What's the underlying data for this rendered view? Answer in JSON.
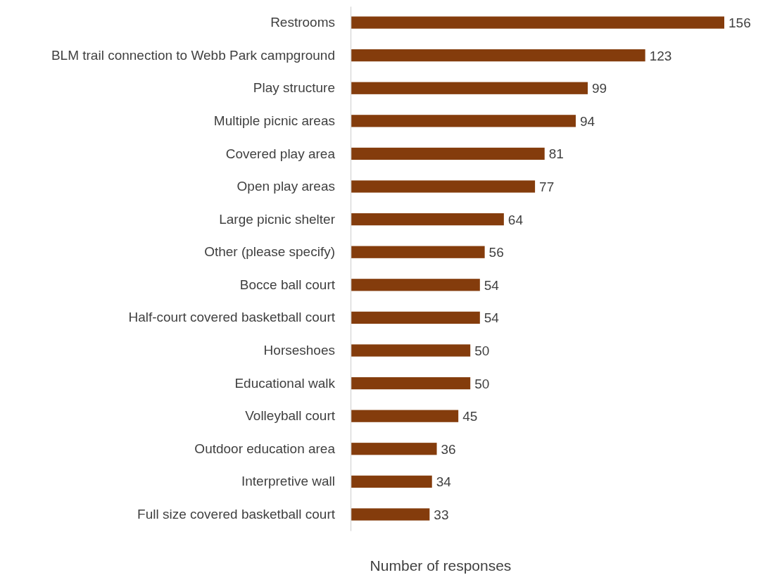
{
  "chart_data": {
    "type": "bar",
    "orientation": "horizontal",
    "xlabel": "Number of responses",
    "categories": [
      "Restrooms",
      "BLM trail connection to Webb Park campground",
      "Play structure",
      "Multiple picnic areas",
      "Covered play area",
      "Open play areas",
      "Large picnic shelter",
      "Other (please specify)",
      "Bocce ball court",
      "Half-court covered basketball court",
      "Horseshoes",
      "Educational walk",
      "Volleyball court",
      "Outdoor education area",
      "Interpretive wall",
      "Full size covered basketball court"
    ],
    "values": [
      156,
      123,
      99,
      94,
      81,
      77,
      64,
      56,
      54,
      54,
      50,
      50,
      45,
      36,
      34,
      33
    ],
    "color": "#843c0c",
    "data_labels": true
  }
}
